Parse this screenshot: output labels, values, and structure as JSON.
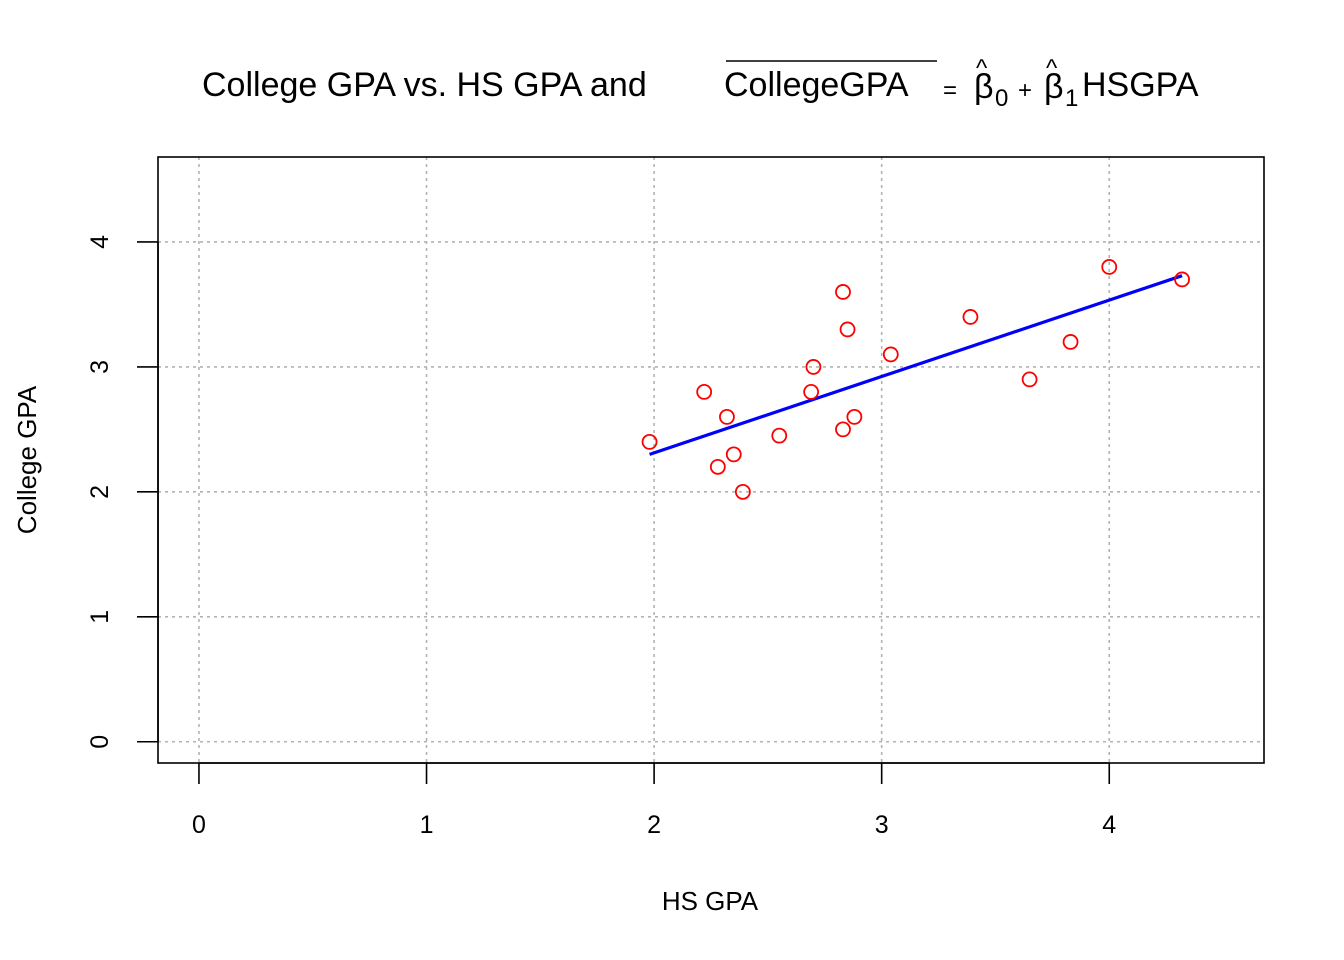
{
  "chart_data": {
    "type": "scatter",
    "title": {
      "prefix": "College GPA vs. HS GPA and",
      "hat_term": "CollegeGPA",
      "equals": "=",
      "beta": "β",
      "hat": "^",
      "sub0": "0",
      "plus": "+",
      "sub1": "1",
      "suffix": "HSGPA"
    },
    "xlabel": "HS GPA",
    "ylabel": "College GPA",
    "xlim": [
      -0.18,
      4.68
    ],
    "ylim": [
      -0.17,
      4.68
    ],
    "x_ticks": [
      0,
      1,
      2,
      3,
      4
    ],
    "y_ticks": [
      0,
      1,
      2,
      3,
      4
    ],
    "x_tick_labels": [
      "0",
      "1",
      "2",
      "3",
      "4"
    ],
    "y_tick_labels": [
      "0",
      "1",
      "2",
      "3",
      "4"
    ],
    "grid": true,
    "series": [
      {
        "kind": "points",
        "color": "#ff0000",
        "marker": "open-circle",
        "x": [
          1.98,
          2.22,
          2.28,
          2.32,
          2.35,
          2.39,
          2.55,
          2.69,
          2.7,
          2.83,
          2.83,
          2.85,
          2.88,
          3.04,
          3.39,
          3.65,
          3.83,
          4.0,
          4.32
        ],
        "y": [
          2.4,
          2.8,
          2.2,
          2.6,
          2.3,
          2.0,
          2.45,
          2.8,
          3.0,
          3.6,
          2.5,
          3.3,
          2.6,
          3.1,
          3.4,
          2.9,
          3.2,
          3.8,
          3.7
        ]
      },
      {
        "kind": "line",
        "color": "#0000ff",
        "x": [
          1.98,
          4.32
        ],
        "y": [
          2.3,
          3.73
        ]
      }
    ]
  }
}
